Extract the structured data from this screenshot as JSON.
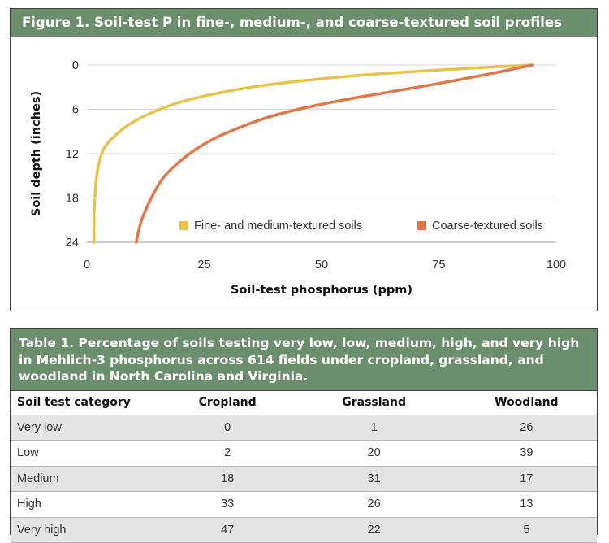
{
  "figure": {
    "title": "Figure 1. Soil-test P in fine-, medium-, and coarse-textured soil profiles"
  },
  "chart_data": {
    "type": "line",
    "xlabel": "Soil-test phosphorus (ppm)",
    "ylabel": "Soil depth (inches)",
    "xlim": [
      0,
      100
    ],
    "ylim": [
      0,
      24
    ],
    "y_inverted": true,
    "x_ticks": [
      "0",
      "25",
      "50",
      "75",
      "100"
    ],
    "y_ticks": [
      "0",
      "6",
      "12",
      "18",
      "24"
    ],
    "grid": "horizontal",
    "legend_position": "lower-right",
    "series": [
      {
        "name": "Fine- and medium-textured soils",
        "color": "#e8c24a",
        "x": [
          95,
          80,
          60,
          45,
          35,
          25,
          18,
          12,
          8,
          5,
          3.5,
          2.5,
          2,
          1.7,
          1.5,
          1.5
        ],
        "y": [
          0,
          0.5,
          1.3,
          2.2,
          3.0,
          4.2,
          5.4,
          7.0,
          8.5,
          10.2,
          11.5,
          13.5,
          15.5,
          18,
          21,
          24
        ]
      },
      {
        "name": "Coarse-textured soils",
        "color": "#e0774a",
        "x": [
          95,
          85,
          75,
          65,
          55,
          45,
          38,
          32,
          27,
          23,
          19,
          16,
          13.5,
          11.5,
          10.5
        ],
        "y": [
          0,
          1.3,
          2.5,
          3.6,
          4.7,
          6.0,
          7.2,
          8.6,
          10.0,
          11.5,
          13.5,
          15.5,
          18.3,
          21.3,
          24
        ]
      }
    ]
  },
  "table": {
    "title": "Table 1. Percentage of soils testing very low, low, medium, high, and very high in Mehlich-3 phosphorus across 614 fields under cropland, grassland, and woodland in North Carolina and Virginia.",
    "headers": [
      "Soil test category",
      "Cropland",
      "Grassland",
      "Woodland"
    ],
    "rows": [
      [
        "Very low",
        "0",
        "1",
        "26"
      ],
      [
        "Low",
        "2",
        "20",
        "39"
      ],
      [
        "Medium",
        "18",
        "31",
        "17"
      ],
      [
        "High",
        "33",
        "26",
        "13"
      ],
      [
        "Very high",
        "47",
        "22",
        "5"
      ]
    ]
  }
}
